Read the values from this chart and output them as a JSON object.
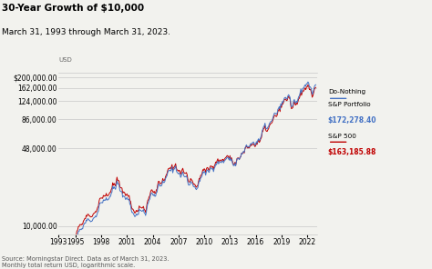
{
  "title": "30-Year Growth of $10,000",
  "subtitle": "March 31, 1993 through March 31, 2023.",
  "ylabel_usd": "USD",
  "source": "Source: Morningstar Direct. Data as of March 31, 2023.\nMonthly total return USD, logarithmic scale.",
  "yticks": [
    10000,
    48000,
    86000,
    124000,
    162000,
    200000
  ],
  "xtick_years": [
    1993,
    1995,
    1998,
    2001,
    2004,
    2007,
    2010,
    2013,
    2016,
    2019,
    2022
  ],
  "legend": [
    {
      "label": "Do-Nothing\nS&P Portfolio",
      "value": "$172,278.40",
      "color": "#4472C4"
    },
    {
      "label": "S&P 500",
      "value": "$163,185.88",
      "color": "#C00000"
    }
  ],
  "line_blue_color": "#4472C4",
  "line_red_color": "#C00000",
  "bg_color": "#f2f2ee",
  "grid_color": "#c8c8c8",
  "title_fontsize": 7.5,
  "subtitle_fontsize": 6.5,
  "tick_fontsize": 5.5,
  "source_fontsize": 4.8,
  "legend_label_fontsize": 5.2,
  "legend_value_fontsize": 5.5
}
